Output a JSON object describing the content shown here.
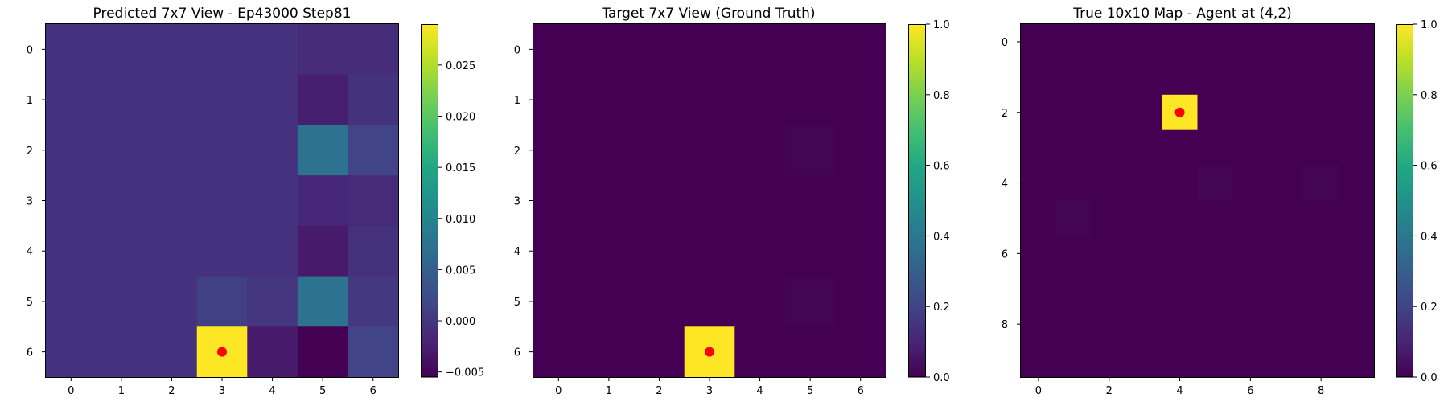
{
  "colors": {
    "colormap": "viridis",
    "agent_marker": "#ff0000",
    "axis": "#000000",
    "background": "#ffffff"
  },
  "chart_data": [
    {
      "type": "heatmap",
      "title": "Predicted 7x7 View - Ep43000 Step81",
      "xlabel": "",
      "ylabel": "",
      "x_ticks": [
        "0",
        "1",
        "2",
        "3",
        "4",
        "5",
        "6"
      ],
      "y_ticks": [
        "0",
        "1",
        "2",
        "3",
        "4",
        "5",
        "6"
      ],
      "vmin": -0.0055,
      "vmax": 0.029,
      "colorbar_ticks": [
        {
          "value": 0.025,
          "label": "0.025"
        },
        {
          "value": 0.02,
          "label": "0.020"
        },
        {
          "value": 0.015,
          "label": "0.015"
        },
        {
          "value": 0.01,
          "label": "0.010"
        },
        {
          "value": 0.005,
          "label": "0.005"
        },
        {
          "value": 0.0,
          "label": "0.000"
        },
        {
          "value": -0.005,
          "label": "−0.005"
        }
      ],
      "values": [
        [
          -0.0006,
          -0.0006,
          -0.0006,
          -0.0006,
          -0.0006,
          -0.0012,
          -0.0011
        ],
        [
          -0.0006,
          -0.0006,
          -0.0006,
          -0.0006,
          -0.0006,
          -0.0025,
          -0.0005
        ],
        [
          -0.0006,
          -0.0006,
          -0.0006,
          -0.0006,
          -0.0006,
          0.0075,
          0.0015
        ],
        [
          -0.0006,
          -0.0006,
          -0.0006,
          -0.0006,
          -0.0006,
          -0.0017,
          -0.0014
        ],
        [
          -0.0006,
          -0.0006,
          -0.0006,
          -0.0006,
          -0.0006,
          -0.003,
          -0.0008
        ],
        [
          -0.0006,
          -0.0006,
          -0.0006,
          0.001,
          -0.0001,
          0.0075,
          0.0001
        ],
        [
          -0.0006,
          -0.0006,
          -0.0006,
          0.029,
          -0.003,
          -0.0055,
          0.0015
        ]
      ],
      "agent": {
        "x": 3,
        "y": 6
      }
    },
    {
      "type": "heatmap",
      "title": "Target 7x7 View (Ground Truth)",
      "xlabel": "",
      "ylabel": "",
      "x_ticks": [
        "0",
        "1",
        "2",
        "3",
        "4",
        "5",
        "6"
      ],
      "y_ticks": [
        "0",
        "1",
        "2",
        "3",
        "4",
        "5",
        "6"
      ],
      "vmin": 0.0,
      "vmax": 1.0,
      "colorbar_ticks": [
        {
          "value": 1.0,
          "label": "1.0"
        },
        {
          "value": 0.8,
          "label": "0.8"
        },
        {
          "value": 0.6,
          "label": "0.6"
        },
        {
          "value": 0.4,
          "label": "0.4"
        },
        {
          "value": 0.2,
          "label": "0.2"
        },
        {
          "value": 0.0,
          "label": "0.0"
        }
      ],
      "values": [
        [
          0,
          0,
          0,
          0,
          0,
          0,
          0
        ],
        [
          0,
          0,
          0,
          0,
          0,
          0,
          0
        ],
        [
          0,
          0,
          0,
          0,
          0,
          0.01,
          0
        ],
        [
          0,
          0,
          0,
          0,
          0,
          0,
          0
        ],
        [
          0,
          0,
          0,
          0,
          0,
          0,
          0
        ],
        [
          0,
          0,
          0,
          0,
          0,
          0.01,
          0
        ],
        [
          0,
          0,
          0,
          1,
          0,
          0,
          0
        ]
      ],
      "agent": {
        "x": 3,
        "y": 6
      }
    },
    {
      "type": "heatmap",
      "title": "True 10x10 Map - Agent at (4,2)",
      "xlabel": "",
      "ylabel": "",
      "x_ticks": [
        "0",
        "2",
        "4",
        "6",
        "8"
      ],
      "y_ticks": [
        "0",
        "2",
        "4",
        "6",
        "8"
      ],
      "vmin": 0.0,
      "vmax": 1.0,
      "colorbar_ticks": [
        {
          "value": 1.0,
          "label": "1.0"
        },
        {
          "value": 0.8,
          "label": "0.8"
        },
        {
          "value": 0.6,
          "label": "0.6"
        },
        {
          "value": 0.4,
          "label": "0.4"
        },
        {
          "value": 0.2,
          "label": "0.2"
        },
        {
          "value": 0.0,
          "label": "0.0"
        }
      ],
      "values": [
        [
          0,
          0,
          0,
          0,
          0,
          0,
          0,
          0,
          0,
          0
        ],
        [
          0,
          0,
          0,
          0,
          0,
          0,
          0,
          0,
          0,
          0
        ],
        [
          0,
          0,
          0,
          0,
          1,
          0,
          0,
          0,
          0,
          0
        ],
        [
          0,
          0,
          0,
          0,
          0,
          0,
          0,
          0,
          0,
          0
        ],
        [
          0,
          0,
          0,
          0,
          0,
          0.01,
          0,
          0,
          0.01,
          0
        ],
        [
          0,
          0.01,
          0,
          0,
          0,
          0,
          0,
          0,
          0,
          0
        ],
        [
          0,
          0,
          0,
          0,
          0,
          0,
          0,
          0,
          0,
          0
        ],
        [
          0,
          0,
          0,
          0,
          0,
          0,
          0,
          0,
          0,
          0
        ],
        [
          0,
          0,
          0,
          0,
          0,
          0,
          0,
          0,
          0,
          0
        ],
        [
          0,
          0,
          0,
          0,
          0,
          0,
          0,
          0,
          0,
          0
        ]
      ],
      "agent": {
        "x": 4,
        "y": 2
      }
    }
  ]
}
